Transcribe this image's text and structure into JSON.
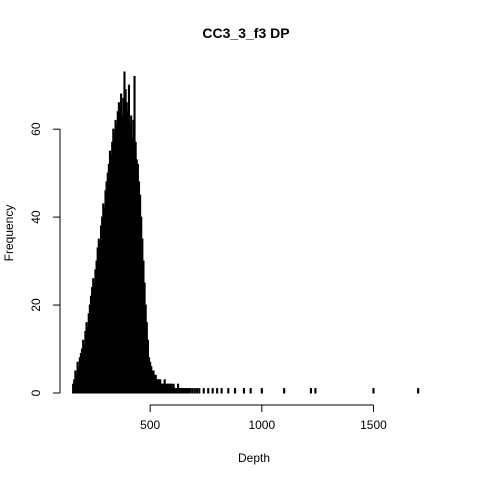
{
  "chart_data": {
    "type": "bar",
    "title": "CC3_3_f3 DP",
    "xlabel": "Depth",
    "ylabel": "Frequency",
    "xlim": [
      150,
      1780
    ],
    "ylim": [
      0,
      73
    ],
    "x_ticks": [
      500,
      1000,
      1500
    ],
    "y_ticks": [
      0,
      20,
      40,
      60
    ],
    "grid": false,
    "legend": "none",
    "bar_color": "#000000",
    "series": [
      {
        "x": [
          155,
          160,
          165,
          170,
          175,
          180,
          185,
          190,
          195,
          200,
          205,
          210,
          215,
          220,
          225,
          230,
          235,
          240,
          245,
          250,
          255,
          260,
          265,
          270,
          275,
          280,
          285,
          290,
          295,
          300,
          305,
          310,
          315,
          320,
          325,
          330,
          335,
          340,
          345,
          350,
          355,
          360,
          365,
          370,
          375,
          380,
          385,
          390,
          395,
          400,
          405,
          410,
          415,
          420,
          425,
          430,
          435,
          440,
          445,
          450,
          455,
          460,
          465,
          470,
          475,
          480,
          485,
          490,
          495,
          500,
          505,
          510,
          515,
          520,
          525,
          530,
          535,
          540,
          545,
          550,
          555,
          560,
          565,
          570,
          575,
          580,
          585,
          590,
          595,
          600,
          605,
          610,
          615,
          620,
          625,
          630,
          635,
          640,
          645,
          650,
          655,
          660,
          665,
          670,
          675,
          680,
          690,
          700,
          710,
          720,
          740,
          760,
          780,
          800,
          820,
          850,
          880,
          920,
          950,
          1000,
          1100,
          1220,
          1240,
          1500,
          1700
        ],
        "y": [
          2,
          3,
          5,
          4,
          7,
          6,
          8,
          9,
          10,
          12,
          11,
          14,
          16,
          15,
          18,
          20,
          22,
          24,
          26,
          25,
          28,
          30,
          33,
          35,
          34,
          38,
          40,
          43,
          42,
          46,
          48,
          50,
          52,
          55,
          54,
          57,
          60,
          59,
          62,
          61,
          64,
          66,
          65,
          68,
          63,
          67,
          73,
          69,
          66,
          64,
          70,
          61,
          63,
          58,
          62,
          72,
          57,
          53,
          52,
          48,
          45,
          40,
          35,
          30,
          25,
          20,
          16,
          12,
          8,
          7,
          6,
          5,
          5,
          4,
          4,
          3,
          3,
          3,
          3,
          2,
          2,
          2,
          3,
          2,
          2,
          2,
          2,
          2,
          2,
          1,
          2,
          1,
          1,
          1,
          2,
          1,
          1,
          1,
          1,
          1,
          1,
          1,
          1,
          1,
          1,
          1,
          1,
          1,
          1,
          1,
          1,
          1,
          1,
          1,
          1,
          1,
          1,
          1,
          1,
          1,
          1,
          1,
          1,
          1,
          1
        ]
      }
    ]
  }
}
